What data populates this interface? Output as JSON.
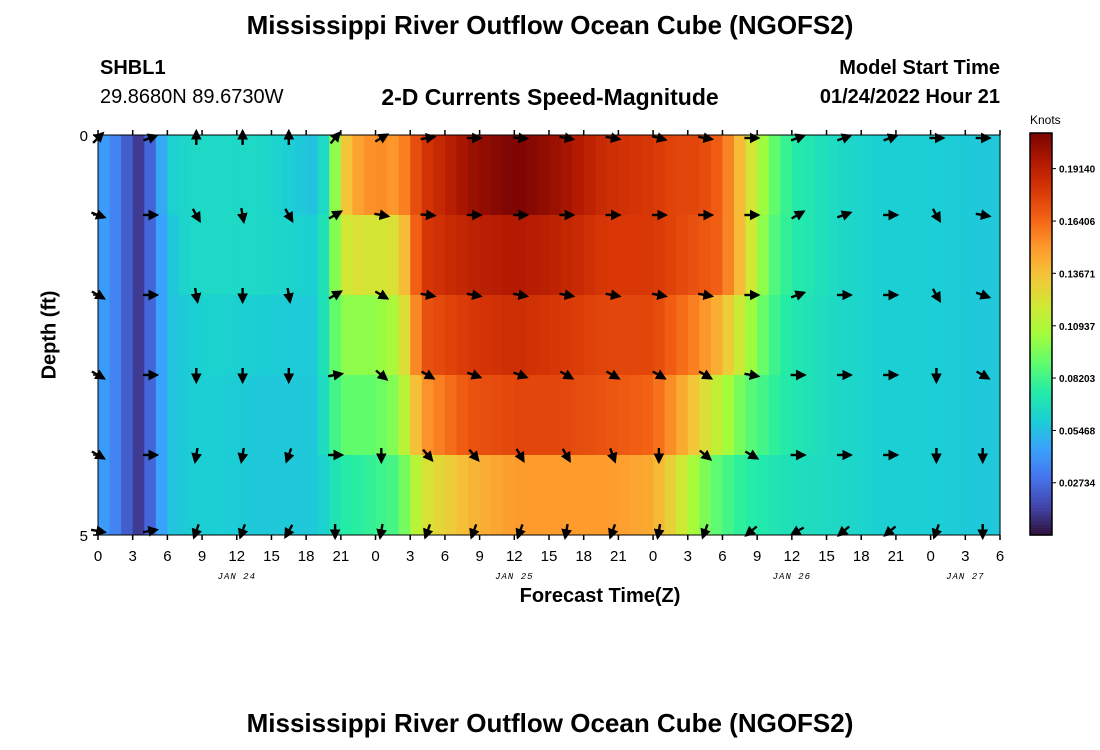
{
  "titles": {
    "main": "Mississippi River Outflow Ocean Cube (NGOFS2)",
    "repeat": "Mississippi River Outflow Ocean Cube (NGOFS2)"
  },
  "station": {
    "id": "SHBL1",
    "coords": "29.8680N  89.6730W"
  },
  "plot_subtitle": "2-D Currents Speed-Magnitude",
  "model_start": {
    "label": "Model Start Time",
    "value": "01/24/2022 Hour 21"
  },
  "chart_data": {
    "type": "heatmap",
    "title": "2-D Currents Speed-Magnitude",
    "xlabel": "Forecast Time(Z)",
    "ylabel": "Depth (ft)",
    "x_unit": "hours from 2022-01-24 00Z",
    "xlim": [
      0,
      78
    ],
    "ylim": [
      0,
      5
    ],
    "y_ticks": [
      0,
      1,
      2,
      3,
      4,
      5
    ],
    "y_tick_labels": [
      "0",
      "",
      "",
      "",
      "",
      "5"
    ],
    "x_ticks": [
      0,
      3,
      6,
      9,
      12,
      15,
      18,
      21,
      24,
      27,
      30,
      33,
      36,
      39,
      42,
      45,
      48,
      51,
      54,
      57,
      60,
      63,
      66,
      69,
      72,
      75,
      78
    ],
    "x_tick_labels": [
      "0",
      "3",
      "6",
      "9",
      "12",
      "15",
      "18",
      "21",
      "0",
      "3",
      "6",
      "9",
      "12",
      "15",
      "18",
      "21",
      "0",
      "3",
      "6",
      "9",
      "12",
      "15",
      "18",
      "21",
      "0",
      "3",
      "6"
    ],
    "date_labels": [
      {
        "x": 12,
        "label": "JAN 24"
      },
      {
        "x": 36,
        "label": "JAN 25"
      },
      {
        "x": 60,
        "label": "JAN 26"
      },
      {
        "x": 75,
        "label": "JAN 27"
      }
    ],
    "colorbar": {
      "unit": "Knots",
      "min": 0.0,
      "max": 0.21,
      "ticks": [
        0.0273,
        0.0546,
        0.082,
        0.1093,
        0.1367,
        0.164,
        0.1914
      ],
      "tick_labels": [
        "0.02734",
        "0.05468",
        "0.08203",
        "0.10937",
        "0.13671",
        "0.16406",
        "0.19140"
      ],
      "colors": [
        "#30123b",
        "#4145ab",
        "#4675ed",
        "#39a2fc",
        "#1bcfd4",
        "#24eca6",
        "#61fc6c",
        "#a4fc3b",
        "#d1e834",
        "#f3c63a",
        "#fe9b2d",
        "#f36315",
        "#d93806",
        "#b11901",
        "#7a0402"
      ]
    },
    "depth_layers": [
      0,
      1,
      2,
      3,
      4
    ],
    "time_anchors": [
      0,
      1,
      2,
      3,
      3.5,
      4,
      5,
      6,
      8,
      10,
      14,
      19,
      20,
      21,
      22,
      24,
      26,
      28,
      32,
      36,
      40,
      44,
      48,
      50,
      52,
      54,
      56,
      58,
      60,
      64,
      68,
      72,
      76,
      78
    ],
    "speed_knots": [
      [
        0.045,
        0.04,
        0.03,
        0.015,
        0.012,
        0.015,
        0.035,
        0.06,
        0.065,
        0.065,
        0.065,
        0.055,
        0.075,
        0.125,
        0.145,
        0.155,
        0.15,
        0.18,
        0.2,
        0.21,
        0.2,
        0.185,
        0.18,
        0.175,
        0.175,
        0.165,
        0.13,
        0.095,
        0.075,
        0.065,
        0.06,
        0.06,
        0.058,
        0.058
      ],
      [
        0.045,
        0.04,
        0.03,
        0.015,
        0.012,
        0.015,
        0.035,
        0.055,
        0.065,
        0.065,
        0.065,
        0.06,
        0.08,
        0.115,
        0.125,
        0.12,
        0.125,
        0.18,
        0.19,
        0.195,
        0.19,
        0.18,
        0.18,
        0.175,
        0.17,
        0.165,
        0.13,
        0.09,
        0.075,
        0.065,
        0.06,
        0.06,
        0.058,
        0.058
      ],
      [
        0.045,
        0.04,
        0.03,
        0.015,
        0.012,
        0.015,
        0.035,
        0.055,
        0.06,
        0.062,
        0.06,
        0.058,
        0.08,
        0.1,
        0.1,
        0.1,
        0.11,
        0.17,
        0.18,
        0.185,
        0.18,
        0.175,
        0.175,
        0.165,
        0.155,
        0.14,
        0.11,
        0.085,
        0.072,
        0.065,
        0.06,
        0.06,
        0.058,
        0.058
      ],
      [
        0.045,
        0.04,
        0.03,
        0.015,
        0.012,
        0.015,
        0.035,
        0.055,
        0.06,
        0.06,
        0.058,
        0.058,
        0.075,
        0.09,
        0.09,
        0.09,
        0.1,
        0.15,
        0.17,
        0.175,
        0.175,
        0.17,
        0.165,
        0.15,
        0.13,
        0.11,
        0.09,
        0.08,
        0.072,
        0.065,
        0.06,
        0.06,
        0.058,
        0.058
      ],
      [
        0.045,
        0.04,
        0.03,
        0.015,
        0.012,
        0.015,
        0.035,
        0.055,
        0.06,
        0.06,
        0.058,
        0.058,
        0.065,
        0.075,
        0.075,
        0.08,
        0.085,
        0.12,
        0.14,
        0.15,
        0.15,
        0.15,
        0.145,
        0.125,
        0.1,
        0.085,
        0.075,
        0.072,
        0.068,
        0.065,
        0.06,
        0.06,
        0.058,
        0.058
      ]
    ],
    "vector_times": [
      0,
      4.5,
      8.5,
      12.5,
      16.5,
      20.5,
      24.5,
      28.5,
      32.5,
      36.5,
      40.5,
      44.5,
      48.5,
      52.5,
      56.5,
      60.5,
      64.5,
      68.5,
      72.5,
      76.5
    ],
    "vector_depths": [
      0,
      1,
      2,
      3,
      4,
      5
    ],
    "vector_direction_deg": [
      [
        45,
        70,
        0,
        0,
        0,
        40,
        60,
        80,
        90,
        95,
        100,
        100,
        105,
        100,
        90,
        70,
        70,
        70,
        90,
        90
      ],
      [
        110,
        90,
        150,
        170,
        150,
        60,
        100,
        95,
        90,
        90,
        90,
        90,
        90,
        90,
        90,
        60,
        70,
        90,
        150,
        100
      ],
      [
        120,
        90,
        170,
        180,
        170,
        60,
        120,
        100,
        100,
        100,
        100,
        100,
        100,
        100,
        90,
        70,
        90,
        90,
        150,
        110
      ],
      [
        120,
        90,
        180,
        180,
        180,
        80,
        130,
        120,
        110,
        110,
        120,
        120,
        120,
        120,
        100,
        90,
        90,
        90,
        180,
        120
      ],
      [
        120,
        90,
        190,
        190,
        200,
        90,
        180,
        140,
        140,
        150,
        150,
        160,
        180,
        130,
        120,
        90,
        90,
        90,
        180,
        180
      ],
      [
        100,
        80,
        200,
        200,
        210,
        180,
        190,
        200,
        200,
        200,
        190,
        200,
        190,
        200,
        230,
        240,
        230,
        230,
        200,
        180
      ]
    ]
  }
}
